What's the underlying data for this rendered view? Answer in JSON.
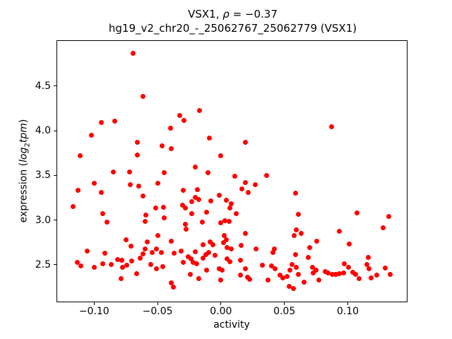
{
  "chart_data": {
    "type": "scatter",
    "title": {
      "prefix": "VSX1, ",
      "rho": "ρ",
      "suffix": " = −0.37",
      "line2": "hg19_v2_chr20_-_25062767_25062779 (VSX1)"
    },
    "xlabel": "activity",
    "ylabel": {
      "prefix": "expression (",
      "log": "log",
      "sub": "2",
      "tpm": "tpm",
      "suffix": ")"
    },
    "xlim": [
      -0.1291,
      0.1465
    ],
    "ylim": [
      2.088,
      5.006
    ],
    "x_ticks": {
      "values": [
        -0.1,
        -0.05,
        0.0,
        0.05,
        0.1
      ],
      "labels": [
        "−0.10",
        "−0.05",
        "0.00",
        "0.05",
        "0.10"
      ]
    },
    "y_ticks": {
      "values": [
        2.5,
        3.0,
        3.5,
        4.0,
        4.5
      ],
      "labels": [
        "2.5",
        "3.0",
        "3.5",
        "4.0",
        "4.5"
      ]
    },
    "marker_color": "#ff0000",
    "marker_size_px": 7,
    "grid": false,
    "legend": null,
    "points": [
      [
        -0.0694,
        4.869
      ],
      [
        -0.0617,
        4.387
      ],
      [
        -0.0944,
        4.093
      ],
      [
        -0.0837,
        4.108
      ],
      [
        -0.102,
        3.953
      ],
      [
        -0.0398,
        4.026
      ],
      [
        -0.0391,
        3.797
      ],
      [
        -0.0464,
        3.829
      ],
      [
        -0.0659,
        3.868
      ],
      [
        -0.0659,
        3.726
      ],
      [
        -0.1109,
        3.718
      ],
      [
        -0.0167,
        4.229
      ],
      [
        -0.0324,
        4.168
      ],
      [
        -0.0291,
        4.119
      ],
      [
        -0.0092,
        3.921
      ],
      [
        0.0191,
        3.874
      ],
      [
        0.0,
        3.724
      ],
      [
        -0.0203,
        3.592
      ],
      [
        -0.0102,
        3.53
      ],
      [
        0.0872,
        4.045
      ],
      [
        -0.0848,
        3.54
      ],
      [
        -0.072,
        3.542
      ],
      [
        -0.045,
        3.529
      ],
      [
        -0.1,
        3.416
      ],
      [
        -0.1126,
        3.332
      ],
      [
        -0.0944,
        3.311
      ],
      [
        -0.0713,
        3.398
      ],
      [
        -0.065,
        3.384
      ],
      [
        -0.0498,
        3.416
      ],
      [
        -0.0617,
        3.271
      ],
      [
        -0.1163,
        3.153
      ],
      [
        -0.0514,
        3.134
      ],
      [
        -0.0453,
        3.142
      ],
      [
        -0.0931,
        3.074
      ],
      [
        -0.0898,
        2.976
      ],
      [
        -0.0592,
        3.055
      ],
      [
        -0.0598,
        2.982
      ],
      [
        -0.045,
        3.029
      ],
      [
        -0.05,
        2.826
      ],
      [
        -0.0746,
        2.779
      ],
      [
        -0.0709,
        2.705
      ],
      [
        -0.0579,
        2.753
      ],
      [
        -0.0394,
        2.766
      ],
      [
        -0.1052,
        2.652
      ],
      [
        -0.0598,
        2.674
      ],
      [
        -0.0542,
        2.634
      ],
      [
        -0.0506,
        2.674
      ],
      [
        -0.0472,
        2.634
      ],
      [
        -0.0917,
        2.626
      ],
      [
        -0.0817,
        2.555
      ],
      [
        -0.1135,
        2.529
      ],
      [
        -0.1102,
        2.49
      ],
      [
        -0.1,
        2.468
      ],
      [
        -0.0931,
        2.508
      ],
      [
        -0.0867,
        2.502
      ],
      [
        -0.0783,
        2.547
      ],
      [
        -0.0778,
        2.468
      ],
      [
        -0.0742,
        2.494
      ],
      [
        -0.0706,
        2.542
      ],
      [
        -0.0635,
        2.573
      ],
      [
        -0.0613,
        2.621
      ],
      [
        -0.0552,
        2.502
      ],
      [
        -0.0509,
        2.455
      ],
      [
        -0.0459,
        2.476
      ],
      [
        -0.0663,
        2.397
      ],
      [
        -0.0787,
        2.344
      ],
      [
        -0.0391,
        2.295
      ],
      [
        -0.0374,
        2.251
      ],
      [
        0.0111,
        3.489
      ],
      [
        0.0361,
        3.503
      ],
      [
        0.0194,
        3.424
      ],
      [
        0.0163,
        3.353
      ],
      [
        0.0213,
        3.311
      ],
      [
        0.0272,
        3.398
      ],
      [
        -0.0296,
        3.337
      ],
      [
        -0.0185,
        3.345
      ],
      [
        -0.0203,
        3.258
      ],
      [
        -0.0172,
        3.232
      ],
      [
        -0.03,
        3.166
      ],
      [
        -0.0281,
        3.134
      ],
      [
        -0.0231,
        3.205
      ],
      [
        -0.0013,
        3.279
      ],
      [
        -0.0078,
        3.213
      ],
      [
        0.0043,
        3.221
      ],
      [
        0.008,
        3.187
      ],
      [
        0.0071,
        3.134
      ],
      [
        0.0121,
        3.076
      ],
      [
        -0.0228,
        3.069
      ],
      [
        -0.0114,
        3.09
      ],
      [
        -0.0148,
        2.976
      ],
      [
        0.0,
        2.968
      ],
      [
        0.0032,
        2.99
      ],
      [
        0.0065,
        2.984
      ],
      [
        -0.0279,
        2.95
      ],
      [
        -0.0274,
        2.895
      ],
      [
        0.0191,
        2.853
      ],
      [
        0.0024,
        2.826
      ],
      [
        0.0043,
        2.779
      ],
      [
        -0.0142,
        2.727
      ],
      [
        -0.0083,
        2.758
      ],
      [
        -0.0061,
        2.727
      ],
      [
        0.0019,
        2.747
      ],
      [
        0.005,
        2.695
      ],
      [
        0.008,
        2.679
      ],
      [
        0.0158,
        2.713
      ],
      [
        0.0278,
        2.679
      ],
      [
        0.0421,
        2.674
      ],
      [
        0.0408,
        2.634
      ],
      [
        -0.0314,
        2.652
      ],
      [
        -0.0203,
        2.648
      ],
      [
        -0.0368,
        2.63
      ],
      [
        -0.0117,
        2.616
      ],
      [
        -0.0098,
        2.634
      ],
      [
        -0.0142,
        2.573
      ],
      [
        -0.0046,
        2.608
      ],
      [
        -0.0256,
        2.589
      ],
      [
        -0.0235,
        2.563
      ],
      [
        -0.0222,
        2.529
      ],
      [
        -0.0296,
        2.529
      ],
      [
        -0.0194,
        2.513
      ],
      [
        0.0047,
        2.563
      ],
      [
        0.0069,
        2.537
      ],
      [
        0.0154,
        2.547
      ],
      [
        0.0324,
        2.494
      ],
      [
        0.0398,
        2.484
      ],
      [
        0.0426,
        2.458
      ],
      [
        0.0191,
        2.455
      ],
      [
        -0.0014,
        2.458
      ],
      [
        0.0009,
        2.437
      ],
      [
        -0.0111,
        2.437
      ],
      [
        -0.0241,
        2.389
      ],
      [
        -0.0172,
        2.344
      ],
      [
        0.0,
        2.332
      ],
      [
        0.0154,
        2.384
      ],
      [
        0.0209,
        2.363
      ],
      [
        0.0228,
        2.337
      ],
      [
        0.0371,
        2.326
      ],
      [
        0.0463,
        2.384
      ],
      [
        0.0487,
        2.352
      ],
      [
        0.0524,
        2.371
      ],
      [
        0.0537,
        2.255
      ],
      [
        0.0586,
        3.305
      ],
      [
        0.0613,
        3.061
      ],
      [
        0.1071,
        3.082
      ],
      [
        0.1321,
        3.042
      ],
      [
        0.0594,
        2.889
      ],
      [
        0.0632,
        2.853
      ],
      [
        0.0576,
        2.826
      ],
      [
        0.0936,
        2.871
      ],
      [
        0.128,
        2.916
      ],
      [
        0.0756,
        2.766
      ],
      [
        0.07,
        2.695
      ],
      [
        0.1011,
        2.731
      ],
      [
        0.0589,
        2.616
      ],
      [
        0.0687,
        2.581
      ],
      [
        0.1163,
        2.579
      ],
      [
        0.1148,
        2.505
      ],
      [
        0.1167,
        2.455
      ],
      [
        0.1186,
        2.355
      ],
      [
        0.1228,
        2.382
      ],
      [
        0.0561,
        2.502
      ],
      [
        0.0594,
        2.468
      ],
      [
        0.0543,
        2.437
      ],
      [
        0.0724,
        2.474
      ],
      [
        0.075,
        2.442
      ],
      [
        0.0728,
        2.405
      ],
      [
        0.0972,
        2.51
      ],
      [
        0.1006,
        2.468
      ],
      [
        0.0821,
        2.423
      ],
      [
        0.0844,
        2.405
      ],
      [
        0.0876,
        2.389
      ],
      [
        0.0904,
        2.392
      ],
      [
        0.0932,
        2.403
      ],
      [
        0.0965,
        2.411
      ],
      [
        0.1039,
        2.415
      ],
      [
        0.1061,
        2.389
      ],
      [
        0.1089,
        2.344
      ],
      [
        0.1293,
        2.463
      ],
      [
        0.1336,
        2.389
      ],
      [
        0.0608,
        2.389
      ],
      [
        0.0654,
        2.305
      ],
      [
        0.0774,
        2.326
      ],
      [
        0.0571,
        2.231
      ]
    ]
  }
}
